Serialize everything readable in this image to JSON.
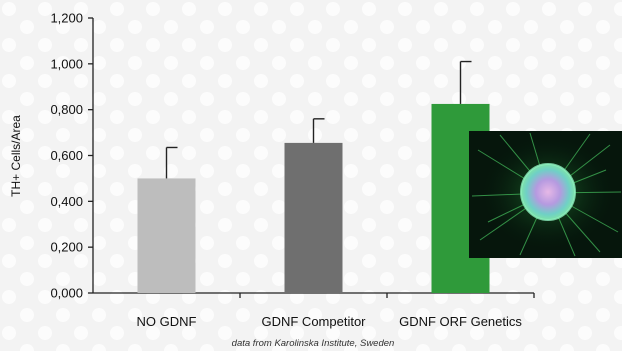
{
  "chart_data": {
    "type": "bar",
    "categories": [
      "NO GDNF",
      "GDNF Competitor",
      "GDNF ORF Genetics"
    ],
    "values": [
      0.5,
      0.655,
      0.825
    ],
    "error_upper": [
      0.635,
      0.76,
      1.01
    ],
    "ylabel": "TH+ Cells/Area",
    "ylim": [
      0,
      1.2
    ],
    "yticks": [
      0.0,
      0.2,
      0.4,
      0.6,
      0.8,
      1.0,
      1.2
    ],
    "ytick_labels": [
      "0,000",
      "0,200",
      "0,400",
      "0,600",
      "0,800",
      "1,000",
      "1,200"
    ],
    "bar_colors": [
      "#bdbdbd",
      "#6f6f6f",
      "#2f9a3a"
    ],
    "grid": false,
    "legend": "none",
    "annotation": "data from Karolinska Institute, Sweden"
  },
  "inset_image": {
    "icon": "fluorescent-cell-micrograph"
  }
}
